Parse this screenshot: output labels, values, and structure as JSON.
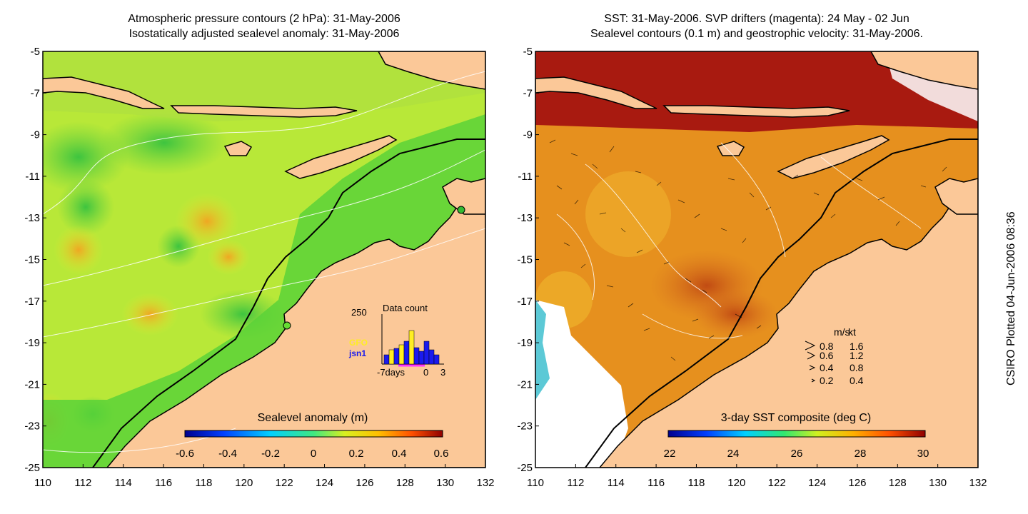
{
  "left_panel": {
    "title_line1": "Atmospheric pressure contours (2 hPa): 31-May-2006",
    "title_line2": "Isostatically adjusted sealevel anomaly: 31-May-2006",
    "colorbar_label": "Sealevel anomaly (m)",
    "colorbar_ticks": [
      "-0.6",
      "-0.4",
      "-0.2",
      "0",
      "0.2",
      "0.4",
      "0.6"
    ],
    "inset": {
      "title": "Data count",
      "y_max_label": "250",
      "legend_gfo": "GFO",
      "legend_jsn1": "jsn1",
      "x_left_label": "-7days",
      "x_zero_label": "0",
      "x_right_label": "3",
      "gfo_color": "#ffee22",
      "jsn1_color": "#1a1aee"
    }
  },
  "right_panel": {
    "title_line1": "SST: 31-May-2006. SVP drifters (magenta): 24 May - 02 Jun",
    "title_line2": "Sealevel contours (0.1 m) and geostrophic velocity: 31-May-2006.",
    "colorbar_label": "3-day SST composite (deg C)",
    "colorbar_ticks": [
      "22",
      "24",
      "26",
      "28",
      "30"
    ],
    "velocity_legend": {
      "header_ms": "m/s",
      "header_kt": "kt",
      "rows": [
        {
          "ms": "0.8",
          "kt": "1.6"
        },
        {
          "ms": "0.6",
          "kt": "1.2"
        },
        {
          "ms": "0.4",
          "kt": "0.8"
        },
        {
          "ms": "0.2",
          "kt": "0.4"
        }
      ]
    }
  },
  "axes": {
    "x_ticks": [
      "110",
      "112",
      "114",
      "116",
      "118",
      "120",
      "122",
      "124",
      "126",
      "128",
      "130",
      "132"
    ],
    "y_ticks": [
      "-5",
      "-7",
      "-9",
      "-11",
      "-13",
      "-15",
      "-17",
      "-19",
      "-21",
      "-23",
      "-25"
    ],
    "lon_range": [
      110,
      132
    ],
    "lat_range": [
      -25,
      -5
    ]
  },
  "credit": "CSIRO Plotted 04-Jun-2006 08:36",
  "colors": {
    "land": "#fbc898",
    "sla_background": "#88dd33",
    "sst_background": "#e08a22",
    "sst_hot": "#a81a10"
  }
}
